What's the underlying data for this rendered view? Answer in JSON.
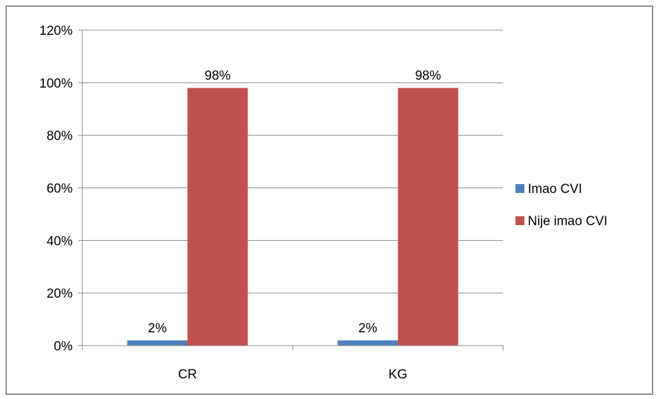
{
  "chart_data": {
    "type": "bar",
    "categories": [
      "CR",
      "KG"
    ],
    "series": [
      {
        "name": "Imao CVI",
        "values": [
          2,
          2
        ],
        "color": "#4f81bd",
        "labels": [
          "2%",
          "2%"
        ]
      },
      {
        "name": "Nije imao CVI",
        "values": [
          98,
          98
        ],
        "color": "#c0504d",
        "labels": [
          "98%",
          "98%"
        ]
      }
    ],
    "ylim": [
      0,
      120
    ],
    "ytick_values": [
      0,
      20,
      40,
      60,
      80,
      100,
      120
    ],
    "ytick_labels": [
      "0%",
      "20%",
      "40%",
      "60%",
      "80%",
      "100%",
      "120%"
    ],
    "grid": true,
    "legend_position": "right",
    "gridline_color": "#868686",
    "axis_color": "#868686"
  }
}
